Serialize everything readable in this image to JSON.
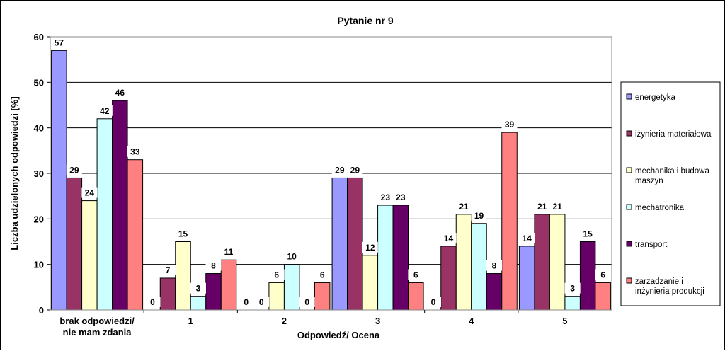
{
  "chart_data": {
    "type": "bar",
    "title": "Pytanie nr 9",
    "xlabel": "Odpowiedź/  Ocena",
    "ylabel": "Liczba udzielonych  odpowiedzi  [%]",
    "ylim": [
      0,
      60
    ],
    "yticks": [
      0,
      10,
      20,
      30,
      40,
      50,
      60
    ],
    "grid": true,
    "legend_position": "right",
    "categories": [
      [
        "brak odpowiedzi/",
        "nie mam zdania"
      ],
      [
        "1"
      ],
      [
        "2"
      ],
      [
        "3"
      ],
      [
        "4"
      ],
      [
        "5"
      ]
    ],
    "series": [
      {
        "name": "energetyka",
        "color": "#9999FF",
        "values": [
          57,
          0,
          0,
          29,
          0,
          14
        ]
      },
      {
        "name": "iżynieria materiałowa",
        "color": "#993366",
        "values": [
          29,
          7,
          0,
          29,
          14,
          21
        ]
      },
      {
        "name": "mechanika i budowa maszyn",
        "color": "#FFFFCC",
        "values": [
          24,
          15,
          6,
          12,
          21,
          21
        ]
      },
      {
        "name": "mechatronika",
        "color": "#CCFFFF",
        "values": [
          42,
          3,
          10,
          23,
          19,
          3
        ]
      },
      {
        "name": "transport",
        "color": "#660066",
        "values": [
          46,
          8,
          0,
          23,
          8,
          15
        ]
      },
      {
        "name": "zarzadzanie i inżynieria produkcji",
        "color": "#FF8080",
        "values": [
          33,
          11,
          6,
          6,
          39,
          6
        ]
      }
    ]
  }
}
